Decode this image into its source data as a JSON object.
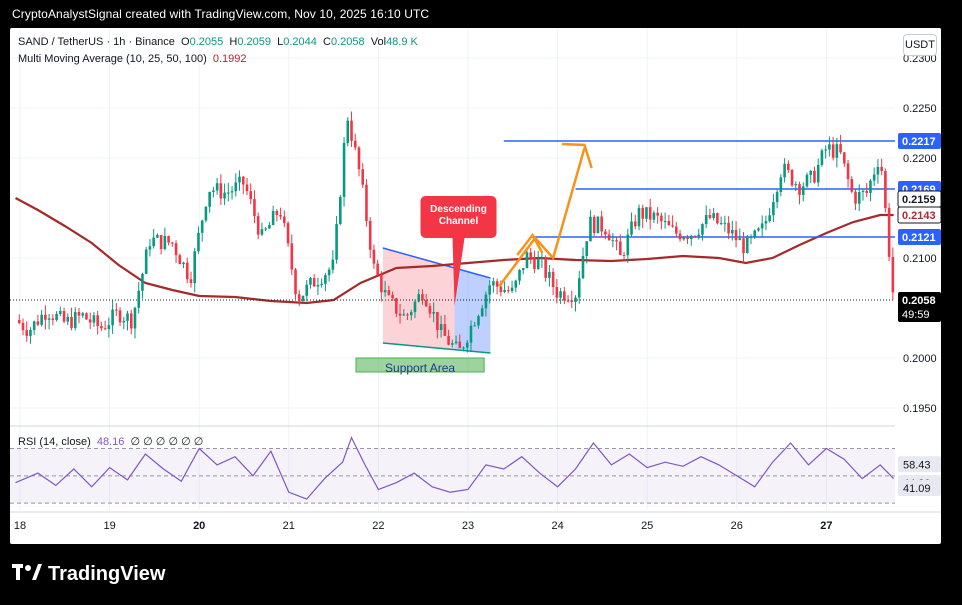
{
  "header": {
    "caption": "CryptoAnalystSignal created with TradingView.com, Nov 10, 2025 16:10 UTC"
  },
  "footer": {
    "brand": "TradingView"
  },
  "legend": {
    "symbol": "SAND / TetherUS · 1h · Binance",
    "o_label": "O",
    "o_value": "0.2055",
    "h_label": "H",
    "h_value": "0.2059",
    "l_label": "L",
    "l_value": "0.2044",
    "c_label": "C",
    "c_value": "0.2058",
    "vol_label": "Vol",
    "vol_value": "48.9 K",
    "ma_label": "Multi Moving Average (10, 25, 50, 100)",
    "ma_value": "0.1992"
  },
  "rsi_legend": {
    "label": "RSI (14, close)",
    "value": "48.16",
    "extra": "∅ ∅ ∅ ∅ ∅ ∅"
  },
  "currency_button": "USDT",
  "chart_data": {
    "type": "candlestick",
    "price_axis": {
      "ticks": [
        "0.2300",
        "0.2250",
        "0.2200",
        "0.2100",
        "0.2000",
        "0.1950"
      ],
      "range": [
        0.1935,
        0.233
      ]
    },
    "price_labels": [
      {
        "value": "0.2217",
        "color": "#2962ff"
      },
      {
        "value": "0.2169",
        "color": "#2962ff"
      },
      {
        "value": "0.2159",
        "color": "#ffffff"
      },
      {
        "value": "0.2143",
        "color": "#ffffff"
      },
      {
        "value": "0.2121",
        "color": "#2962ff"
      },
      {
        "value": "0.2058",
        "color": "#000000"
      }
    ],
    "countdown": "49:59",
    "x_axis": {
      "ticks": [
        "18",
        "19",
        "20",
        "21",
        "22",
        "23",
        "24",
        "25",
        "26",
        "27"
      ],
      "bold_ticks": [
        "20",
        "27"
      ]
    },
    "horizontal_levels": [
      0.2217,
      0.2169,
      0.2121
    ],
    "moving_average": [
      [
        17.95,
        0.216
      ],
      [
        18.2,
        0.2148
      ],
      [
        18.5,
        0.2132
      ],
      [
        18.8,
        0.2115
      ],
      [
        19.1,
        0.2093
      ],
      [
        19.4,
        0.2075
      ],
      [
        19.7,
        0.2068
      ],
      [
        20.0,
        0.2062
      ],
      [
        20.4,
        0.2061
      ],
      [
        20.8,
        0.2057
      ],
      [
        21.2,
        0.2055
      ],
      [
        21.5,
        0.2058
      ],
      [
        21.8,
        0.2075
      ],
      [
        22.2,
        0.209
      ],
      [
        22.6,
        0.2092
      ],
      [
        23.0,
        0.2095
      ],
      [
        23.4,
        0.2098
      ],
      [
        23.8,
        0.21
      ],
      [
        24.2,
        0.2098
      ],
      [
        24.6,
        0.2097
      ],
      [
        25.0,
        0.2099
      ],
      [
        25.4,
        0.2102
      ],
      [
        25.8,
        0.21
      ],
      [
        26.1,
        0.2095
      ],
      [
        26.4,
        0.21
      ],
      [
        26.7,
        0.2113
      ],
      [
        27.0,
        0.2125
      ],
      [
        27.3,
        0.2136
      ],
      [
        27.6,
        0.2143
      ],
      [
        27.75,
        0.2143
      ]
    ],
    "price_path": [
      [
        17.95,
        0.2038
      ],
      [
        18.1,
        0.2028
      ],
      [
        18.3,
        0.2048
      ],
      [
        18.5,
        0.2035
      ],
      [
        18.7,
        0.2042
      ],
      [
        18.9,
        0.203
      ],
      [
        19.1,
        0.2045
      ],
      [
        19.25,
        0.2038
      ],
      [
        19.45,
        0.2118
      ],
      [
        19.7,
        0.2115
      ],
      [
        19.9,
        0.208
      ],
      [
        20.1,
        0.217
      ],
      [
        20.3,
        0.2165
      ],
      [
        20.5,
        0.2175
      ],
      [
        20.7,
        0.212
      ],
      [
        20.9,
        0.215
      ],
      [
        21.1,
        0.206
      ],
      [
        21.3,
        0.2078
      ],
      [
        21.5,
        0.2092
      ],
      [
        21.65,
        0.2245
      ],
      [
        21.8,
        0.218
      ],
      [
        21.95,
        0.209
      ],
      [
        22.1,
        0.2058
      ],
      [
        22.3,
        0.204
      ],
      [
        22.5,
        0.2068
      ],
      [
        22.7,
        0.2025
      ],
      [
        22.9,
        0.2005
      ],
      [
        23.05,
        0.2035
      ],
      [
        23.25,
        0.2075
      ],
      [
        23.5,
        0.2065
      ],
      [
        23.65,
        0.2102
      ],
      [
        23.8,
        0.2095
      ],
      [
        24.0,
        0.2065
      ],
      [
        24.2,
        0.2065
      ],
      [
        24.35,
        0.2135
      ],
      [
        24.55,
        0.213
      ],
      [
        24.7,
        0.21
      ],
      [
        24.9,
        0.2145
      ],
      [
        25.1,
        0.214
      ],
      [
        25.3,
        0.2125
      ],
      [
        25.5,
        0.2125
      ],
      [
        25.7,
        0.214
      ],
      [
        25.9,
        0.2128
      ],
      [
        26.1,
        0.211
      ],
      [
        26.3,
        0.213
      ],
      [
        26.5,
        0.219
      ],
      [
        26.7,
        0.2172
      ],
      [
        26.85,
        0.218
      ],
      [
        27.0,
        0.221
      ],
      [
        27.15,
        0.2205
      ],
      [
        27.3,
        0.216
      ],
      [
        27.45,
        0.2165
      ],
      [
        27.6,
        0.2205
      ],
      [
        27.75,
        0.2058
      ]
    ],
    "rsi": {
      "levels": [
        "58.43",
        "44.80",
        "41.09"
      ],
      "series": [
        [
          17.95,
          45
        ],
        [
          18.2,
          52
        ],
        [
          18.4,
          43
        ],
        [
          18.6,
          55
        ],
        [
          18.8,
          42
        ],
        [
          19.0,
          56
        ],
        [
          19.2,
          47
        ],
        [
          19.4,
          66
        ],
        [
          19.6,
          55
        ],
        [
          19.8,
          46
        ],
        [
          20.0,
          70
        ],
        [
          20.2,
          58
        ],
        [
          20.4,
          64
        ],
        [
          20.6,
          50
        ],
        [
          20.8,
          68
        ],
        [
          21.0,
          38
        ],
        [
          21.2,
          33
        ],
        [
          21.4,
          48
        ],
        [
          21.6,
          60
        ],
        [
          21.7,
          78
        ],
        [
          21.85,
          58
        ],
        [
          22.0,
          40
        ],
        [
          22.2,
          45
        ],
        [
          22.4,
          52
        ],
        [
          22.6,
          42
        ],
        [
          22.8,
          38
        ],
        [
          23.0,
          40
        ],
        [
          23.2,
          58
        ],
        [
          23.4,
          55
        ],
        [
          23.6,
          64
        ],
        [
          23.8,
          52
        ],
        [
          24.0,
          42
        ],
        [
          24.2,
          55
        ],
        [
          24.4,
          74
        ],
        [
          24.6,
          58
        ],
        [
          24.8,
          66
        ],
        [
          25.0,
          56
        ],
        [
          25.2,
          60
        ],
        [
          25.4,
          57
        ],
        [
          25.6,
          64
        ],
        [
          25.8,
          58
        ],
        [
          26.0,
          50
        ],
        [
          26.2,
          42
        ],
        [
          26.4,
          60
        ],
        [
          26.6,
          74
        ],
        [
          26.8,
          58
        ],
        [
          27.0,
          70
        ],
        [
          27.2,
          62
        ],
        [
          27.4,
          48
        ],
        [
          27.6,
          58
        ],
        [
          27.75,
          48
        ]
      ]
    },
    "annotations": {
      "descending_channel": "Descending\nChannel",
      "support_area": "Support Area"
    }
  }
}
